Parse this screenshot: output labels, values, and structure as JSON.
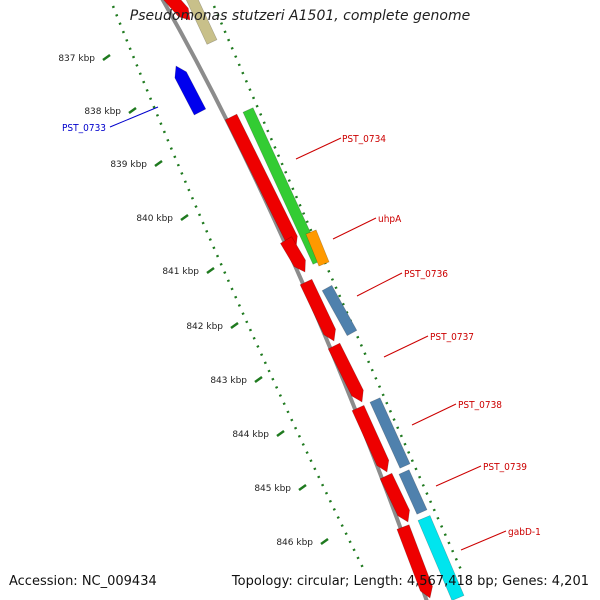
{
  "title": "Pseudomonas stutzeri A1501, complete genome",
  "footer": {
    "accession": "Accession: NC_009434",
    "summary": "Topology: circular; Length: 4,567,418 bp; Genes: 4,201"
  },
  "ticks": [
    "837 kbp",
    "838 kbp",
    "839 kbp",
    "840 kbp",
    "841 kbp",
    "842 kbp",
    "843 kbp",
    "844 kbp",
    "845 kbp",
    "846 kbp"
  ],
  "genes": [
    {
      "name": "PST_0733",
      "color": "#0000cc"
    },
    {
      "name": "PST_0734",
      "color": "#cc0000"
    },
    {
      "name": "uhpA",
      "color": "#cc0000"
    },
    {
      "name": "PST_0736",
      "color": "#cc0000"
    },
    {
      "name": "PST_0737",
      "color": "#cc0000"
    },
    {
      "name": "PST_0738",
      "color": "#cc0000"
    },
    {
      "name": "PST_0739",
      "color": "#cc0000"
    },
    {
      "name": "gabD-1",
      "color": "#cc0000"
    }
  ],
  "colors": {
    "cds_reverse": "#ee0000",
    "cds_forward_blue": "#0000ee",
    "feature_steelblue": "#4f81ad",
    "feature_green": "#33cc33",
    "feature_orange": "#ff9900",
    "feature_cyan": "#00e5ee",
    "feature_khaki": "#c8c08a",
    "backbone": "#8c8c8c",
    "tick_green": "#1f7a1f"
  }
}
